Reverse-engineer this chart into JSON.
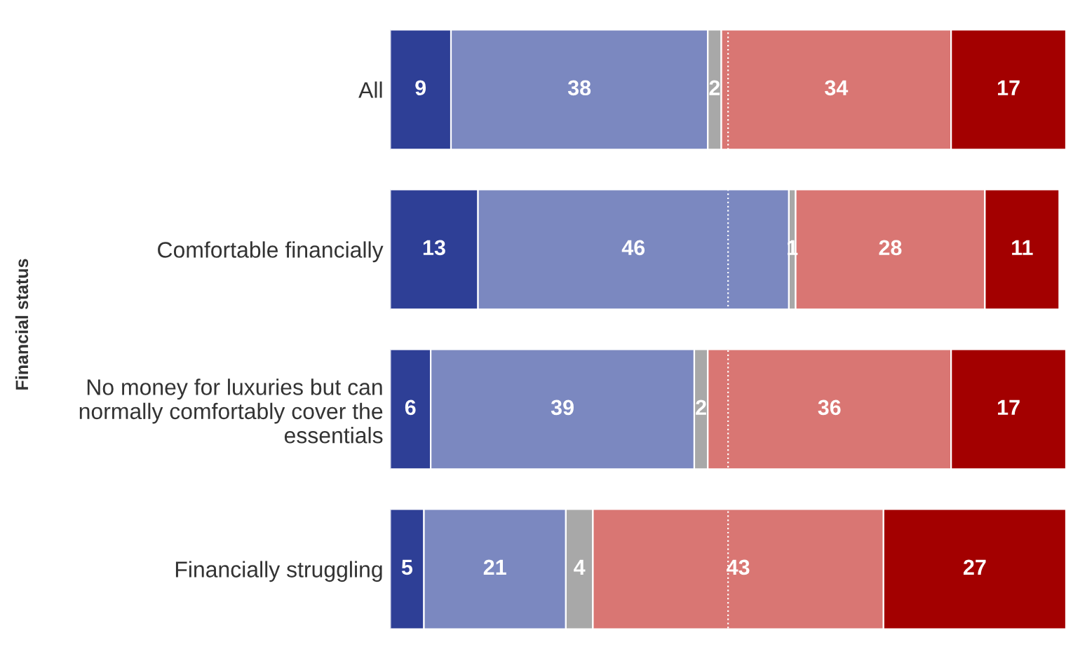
{
  "chart_data": {
    "type": "bar",
    "orientation": "horizontal",
    "stacked": true,
    "ylabel": "Financial status",
    "categories": [
      "All",
      "Comfortable financially",
      "No money for luxuries but can normally comfortably cover the essentials",
      "Financially struggling"
    ],
    "series": [
      {
        "color": "#2e3f96",
        "values": [
          9,
          13,
          6,
          5
        ]
      },
      {
        "color": "#7b88c0",
        "values": [
          38,
          46,
          39,
          21
        ]
      },
      {
        "color": "#a8a8a8",
        "values": [
          2,
          1,
          2,
          4
        ]
      },
      {
        "color": "#d97673",
        "values": [
          34,
          28,
          36,
          43
        ]
      },
      {
        "color": "#a30000",
        "values": [
          17,
          11,
          17,
          27
        ]
      }
    ],
    "xlim": [
      0,
      100
    ],
    "tick_labels": "y",
    "data_labels": true,
    "ref_lines": [
      {
        "axis": "x",
        "value": 50,
        "color": "#ffffff",
        "line_style": "dotted"
      }
    ]
  }
}
